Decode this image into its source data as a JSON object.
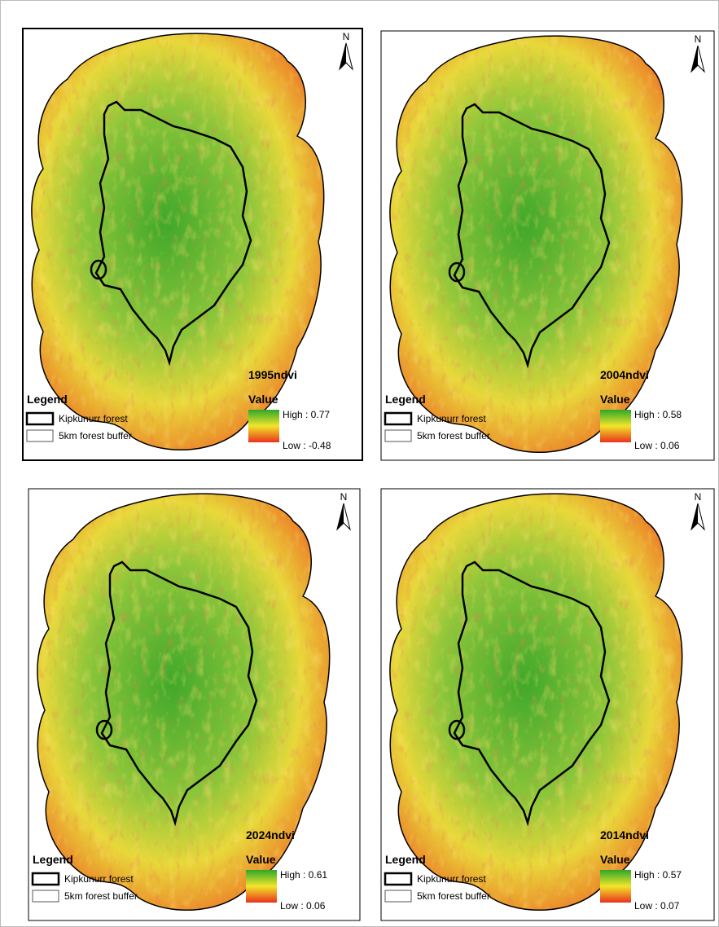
{
  "panels": [
    {
      "title": "1995ndvi",
      "legend_title": "Legend",
      "legend_items": [
        "Kipkunurr forest",
        "5km forest buffer"
      ],
      "value_title": "Value",
      "high": "High : 0.77",
      "low": "Low : -0.48",
      "north": "N"
    },
    {
      "title": "2004ndvi",
      "legend_title": "Legend",
      "legend_items": [
        "Kipkunurr forest",
        "5km forest buffer"
      ],
      "value_title": "Value",
      "high": "High : 0.58",
      "low": "Low : 0.06",
      "north": "N"
    },
    {
      "title": "2024ndvi",
      "legend_title": "Legend",
      "legend_items": [
        "Kipkunurr forest",
        "5km forest buffer"
      ],
      "value_title": "Value",
      "high": "High : 0.61",
      "low": "Low : 0.06",
      "north": "N"
    },
    {
      "title": "2014ndvi",
      "legend_title": "Legend",
      "legend_items": [
        "Kipkunurr forest",
        "5km forest buffer"
      ],
      "value_title": "Value",
      "high": "High : 0.57",
      "low": "Low : 0.07",
      "north": "N"
    }
  ]
}
